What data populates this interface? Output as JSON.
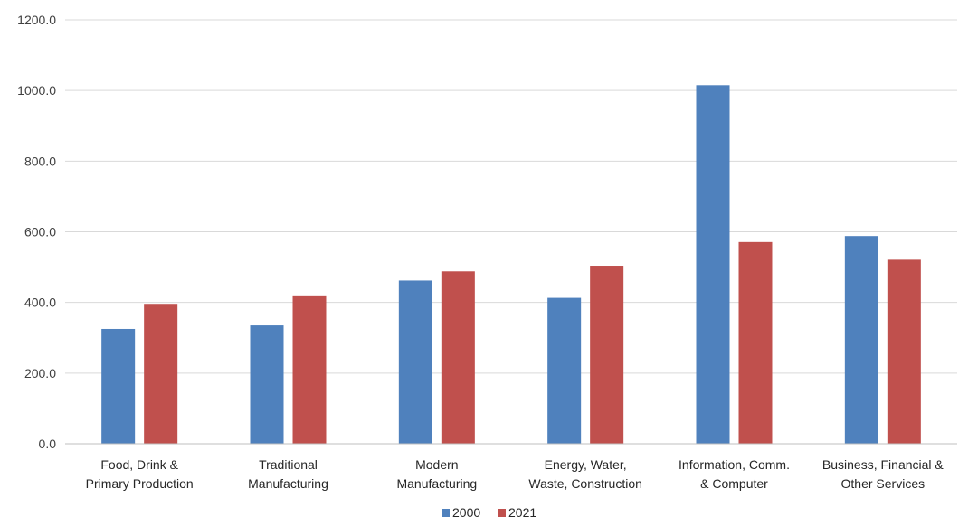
{
  "chart_data": {
    "type": "bar",
    "title": "",
    "xlabel": "",
    "ylabel": "",
    "ylim": [
      0,
      1200
    ],
    "yticks": [
      "0.0",
      "200.0",
      "400.0",
      "600.0",
      "800.0",
      "1000.0",
      "1200.0"
    ],
    "grid": true,
    "legend_position": "bottom",
    "categories": [
      [
        "Food, Drink &",
        "Primary Production"
      ],
      [
        "Traditional",
        "Manufacturing"
      ],
      [
        "Modern",
        "Manufacturing"
      ],
      [
        "Energy, Water,",
        "Waste, Construction"
      ],
      [
        "Information, Comm.",
        "& Computer"
      ],
      [
        "Business, Financial &",
        "Other Services"
      ]
    ],
    "series": [
      {
        "name": "2000",
        "color": "#4f81bd",
        "values": [
          325,
          335,
          462,
          413,
          1015,
          588
        ]
      },
      {
        "name": "2021",
        "color": "#c0504d",
        "values": [
          396,
          420,
          488,
          504,
          571,
          521
        ]
      }
    ]
  }
}
